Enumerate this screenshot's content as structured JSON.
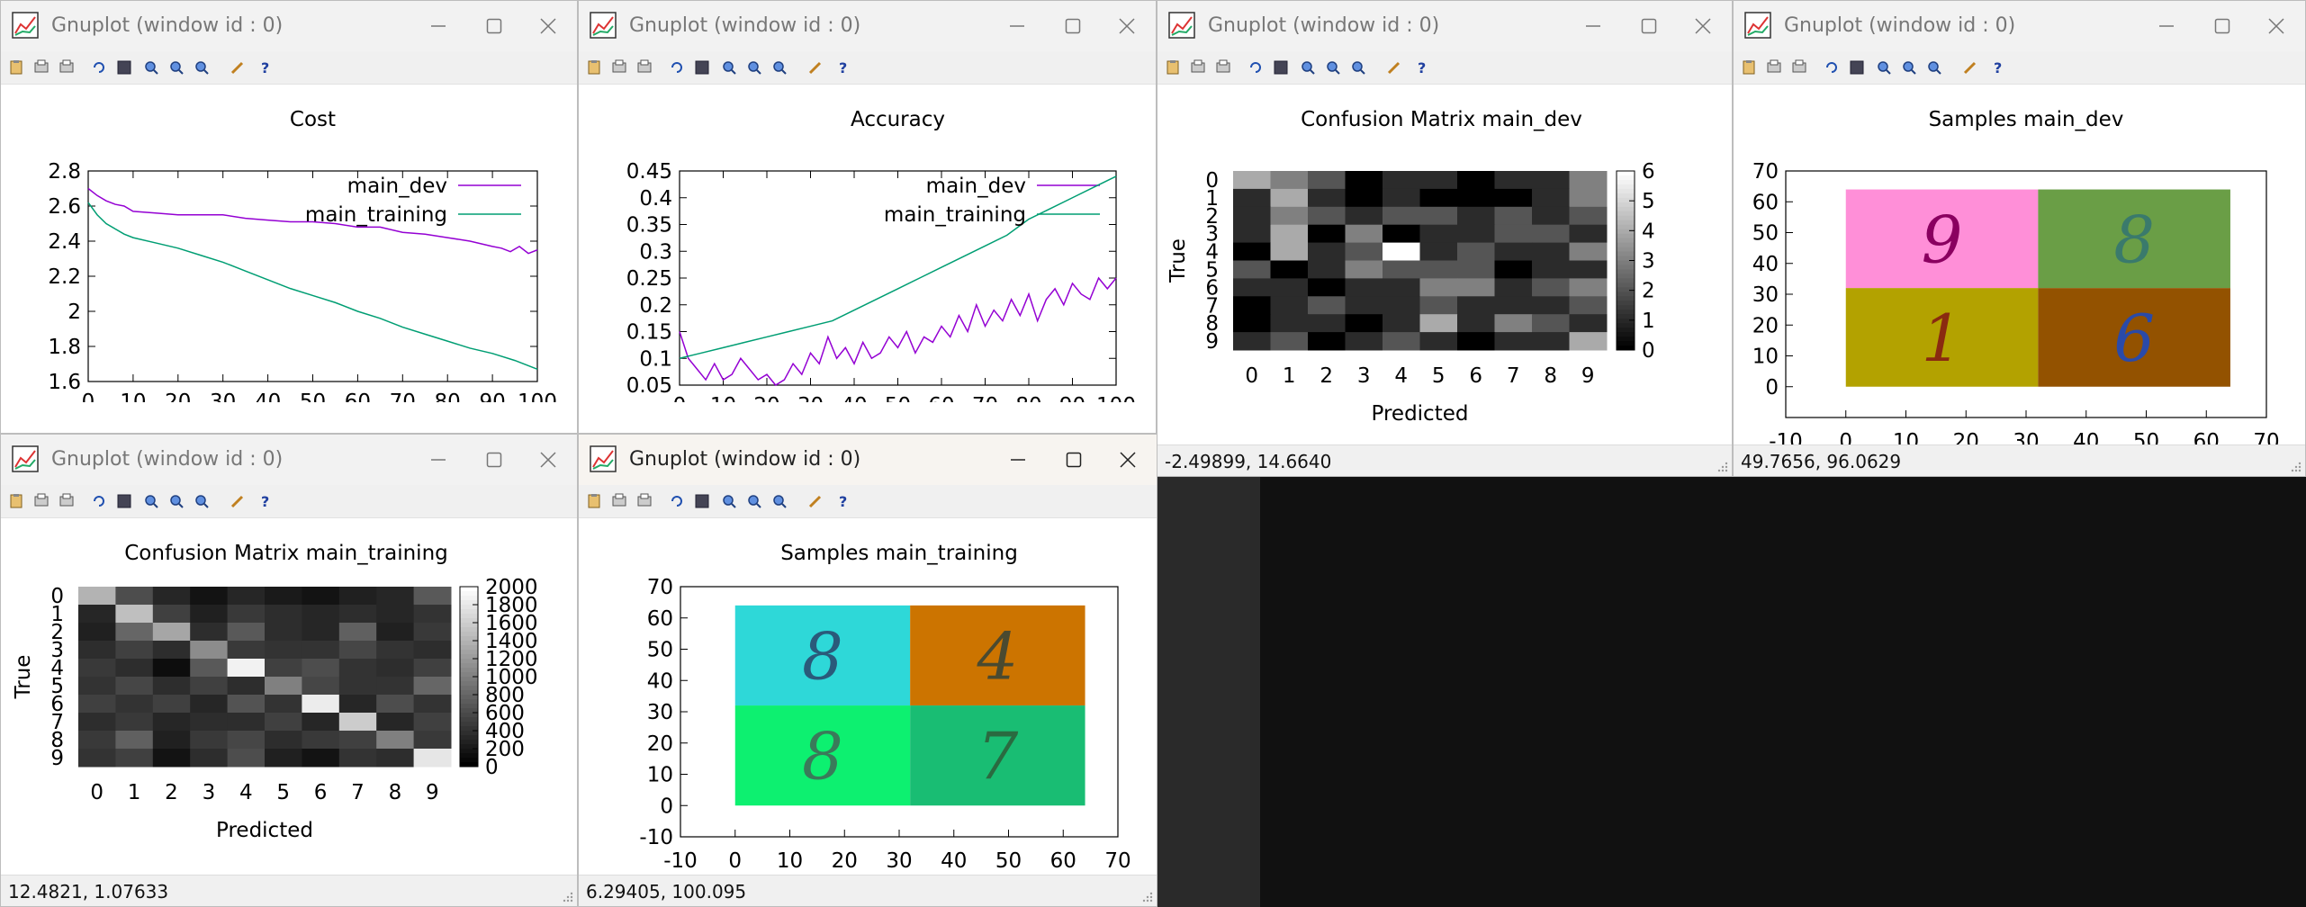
{
  "windows": [
    {
      "id": "w1",
      "title": "Gnuplot (window id : 0)",
      "active": false,
      "status": "",
      "chart_data": {
        "type": "line",
        "title": "Cost",
        "xlim": [
          0,
          100
        ],
        "ylim": [
          1.6,
          2.8
        ],
        "xticks": [
          "0",
          "10",
          "20",
          "30",
          "40",
          "50",
          "60",
          "70",
          "80",
          "90",
          "100"
        ],
        "yticks": [
          "1.6",
          "1.8",
          "2",
          "2.2",
          "2.4",
          "2.6",
          "2.8"
        ],
        "legend": "top-right",
        "series": [
          {
            "name": "main_dev",
            "color": "#9400d3",
            "x": [
              0,
              2,
              4,
              6,
              8,
              10,
              15,
              20,
              25,
              30,
              35,
              40,
              45,
              50,
              55,
              60,
              65,
              70,
              75,
              80,
              85,
              90,
              92,
              94,
              96,
              98,
              100
            ],
            "y": [
              2.7,
              2.66,
              2.63,
              2.61,
              2.6,
              2.57,
              2.56,
              2.55,
              2.55,
              2.55,
              2.53,
              2.52,
              2.51,
              2.51,
              2.5,
              2.48,
              2.48,
              2.45,
              2.44,
              2.42,
              2.4,
              2.37,
              2.36,
              2.34,
              2.37,
              2.33,
              2.35
            ]
          },
          {
            "name": "main_training",
            "color": "#009e73",
            "x": [
              0,
              2,
              4,
              6,
              8,
              10,
              15,
              20,
              25,
              30,
              35,
              40,
              45,
              50,
              55,
              60,
              65,
              70,
              75,
              80,
              85,
              90,
              95,
              100
            ],
            "y": [
              2.62,
              2.55,
              2.5,
              2.47,
              2.44,
              2.42,
              2.39,
              2.36,
              2.32,
              2.28,
              2.23,
              2.18,
              2.13,
              2.09,
              2.05,
              2.0,
              1.96,
              1.91,
              1.87,
              1.83,
              1.79,
              1.76,
              1.72,
              1.67
            ]
          }
        ]
      }
    },
    {
      "id": "w2",
      "title": "Gnuplot (window id : 0)",
      "active": false,
      "status": "",
      "chart_data": {
        "type": "line",
        "title": "Accuracy",
        "xlim": [
          0,
          100
        ],
        "ylim": [
          0.05,
          0.45
        ],
        "xticks": [
          "0",
          "10",
          "20",
          "30",
          "40",
          "50",
          "60",
          "70",
          "80",
          "90",
          "100"
        ],
        "yticks": [
          "0.05",
          "0.1",
          "0.15",
          "0.2",
          "0.25",
          "0.3",
          "0.35",
          "0.4",
          "0.45"
        ],
        "legend": "top-right",
        "series": [
          {
            "name": "main_dev",
            "color": "#9400d3",
            "x": [
              0,
              2,
              4,
              6,
              8,
              10,
              12,
              14,
              16,
              18,
              20,
              22,
              24,
              26,
              28,
              30,
              32,
              34,
              36,
              38,
              40,
              42,
              44,
              46,
              48,
              50,
              52,
              54,
              56,
              58,
              60,
              62,
              64,
              66,
              68,
              70,
              72,
              74,
              76,
              78,
              80,
              82,
              84,
              86,
              88,
              90,
              92,
              94,
              96,
              98,
              100
            ],
            "y": [
              0.15,
              0.1,
              0.08,
              0.06,
              0.09,
              0.06,
              0.07,
              0.1,
              0.08,
              0.06,
              0.07,
              0.05,
              0.06,
              0.09,
              0.07,
              0.11,
              0.09,
              0.14,
              0.1,
              0.12,
              0.09,
              0.13,
              0.1,
              0.11,
              0.14,
              0.12,
              0.15,
              0.11,
              0.14,
              0.13,
              0.16,
              0.14,
              0.18,
              0.15,
              0.2,
              0.16,
              0.19,
              0.17,
              0.21,
              0.18,
              0.22,
              0.17,
              0.21,
              0.23,
              0.2,
              0.24,
              0.22,
              0.21,
              0.25,
              0.23,
              0.25
            ]
          },
          {
            "name": "main_training",
            "color": "#009e73",
            "x": [
              0,
              5,
              10,
              15,
              20,
              25,
              30,
              35,
              40,
              45,
              50,
              55,
              60,
              65,
              70,
              75,
              80,
              85,
              90,
              95,
              100
            ],
            "y": [
              0.1,
              0.11,
              0.12,
              0.13,
              0.14,
              0.15,
              0.16,
              0.17,
              0.19,
              0.21,
              0.23,
              0.25,
              0.27,
              0.29,
              0.31,
              0.33,
              0.36,
              0.38,
              0.4,
              0.42,
              0.44
            ]
          }
        ]
      }
    },
    {
      "id": "w3",
      "title": "Gnuplot (window id : 0)",
      "active": false,
      "status": "-2.49899,  14.6640",
      "chart_data": {
        "type": "heatmap",
        "title": "Confusion Matrix main_dev",
        "xlabel": "Predicted",
        "ylabel": "True",
        "xticks": [
          "0",
          "1",
          "2",
          "3",
          "4",
          "5",
          "6",
          "7",
          "8",
          "9"
        ],
        "yticks": [
          "0",
          "1",
          "2",
          "3",
          "4",
          "5",
          "6",
          "7",
          "8",
          "9"
        ],
        "cbticks": [
          "0",
          "1",
          "2",
          "3",
          "4",
          "5",
          "6"
        ],
        "cbrange": [
          0,
          6
        ],
        "matrix": [
          [
            4,
            3,
            2,
            0,
            1,
            1,
            0,
            1,
            1,
            3
          ],
          [
            1,
            4,
            1,
            0,
            1,
            0,
            0,
            0,
            1,
            3
          ],
          [
            1,
            3,
            2,
            1,
            2,
            2,
            1,
            2,
            1,
            2
          ],
          [
            1,
            4,
            0,
            3,
            0,
            1,
            1,
            2,
            2,
            1
          ],
          [
            0,
            4,
            1,
            2,
            6,
            1,
            2,
            1,
            1,
            3
          ],
          [
            2,
            0,
            1,
            3,
            2,
            2,
            2,
            0,
            1,
            1
          ],
          [
            1,
            1,
            0,
            1,
            1,
            3,
            3,
            1,
            2,
            3
          ],
          [
            0,
            1,
            2,
            1,
            1,
            2,
            1,
            1,
            1,
            2
          ],
          [
            0,
            1,
            1,
            0,
            1,
            4,
            1,
            3,
            2,
            1
          ],
          [
            1,
            2,
            0,
            1,
            2,
            1,
            0,
            1,
            1,
            4
          ]
        ]
      }
    },
    {
      "id": "w4",
      "title": "Gnuplot (window id : 0)",
      "active": false,
      "status": "49.7656,  96.0629",
      "chart_data": {
        "type": "image",
        "title": "Samples main_dev",
        "xlim": [
          -10,
          70
        ],
        "ylim": [
          -10,
          70
        ],
        "xticks": [
          "-10",
          "0",
          "10",
          "20",
          "30",
          "40",
          "50",
          "60",
          "70"
        ],
        "yticks": [
          "0",
          "10",
          "20",
          "30",
          "40",
          "50",
          "60",
          "70"
        ],
        "tiles": [
          {
            "digit": "9",
            "bg": "#ff8fd8",
            "fg": "#8a0060",
            "x": [
              0,
              32
            ],
            "y": [
              32,
              64
            ]
          },
          {
            "digit": "8",
            "bg": "#6a9e46",
            "fg": "#3a7a6c",
            "x": [
              32,
              64
            ],
            "y": [
              32,
              64
            ]
          },
          {
            "digit": "1",
            "bg": "#b3a200",
            "fg": "#8a2a10",
            "x": [
              0,
              32
            ],
            "y": [
              0,
              32
            ]
          },
          {
            "digit": "6",
            "bg": "#935200",
            "fg": "#2a4aa8",
            "x": [
              32,
              64
            ],
            "y": [
              0,
              32
            ]
          }
        ]
      }
    },
    {
      "id": "w5",
      "title": "Gnuplot (window id : 0)",
      "active": false,
      "status": "12.4821,  1.07633",
      "chart_data": {
        "type": "heatmap",
        "title": "Confusion Matrix main_training",
        "xlabel": "Predicted",
        "ylabel": "True",
        "xticks": [
          "0",
          "1",
          "2",
          "3",
          "4",
          "5",
          "6",
          "7",
          "8",
          "9"
        ],
        "yticks": [
          "0",
          "1",
          "2",
          "3",
          "4",
          "5",
          "6",
          "7",
          "8",
          "9"
        ],
        "cbticks": [
          "0",
          "200",
          "400",
          "600",
          "800",
          "1000",
          "1200",
          "1400",
          "1600",
          "1800",
          "2000"
        ],
        "cbrange": [
          0,
          2000
        ],
        "matrix": [
          [
            1400,
            600,
            300,
            150,
            300,
            200,
            150,
            250,
            300,
            700
          ],
          [
            300,
            1500,
            500,
            250,
            450,
            350,
            300,
            350,
            300,
            400
          ],
          [
            250,
            800,
            1300,
            350,
            700,
            350,
            300,
            750,
            250,
            450
          ],
          [
            350,
            500,
            350,
            1100,
            450,
            400,
            400,
            550,
            400,
            350
          ],
          [
            450,
            350,
            100,
            700,
            1900,
            500,
            600,
            400,
            350,
            500
          ],
          [
            400,
            550,
            350,
            500,
            350,
            1000,
            550,
            400,
            400,
            800
          ],
          [
            500,
            400,
            500,
            300,
            650,
            400,
            1850,
            300,
            600,
            400
          ],
          [
            350,
            450,
            300,
            350,
            350,
            500,
            300,
            1600,
            300,
            500
          ],
          [
            450,
            750,
            250,
            450,
            550,
            350,
            450,
            500,
            1000,
            450
          ],
          [
            400,
            500,
            150,
            350,
            600,
            250,
            150,
            400,
            350,
            1800
          ]
        ]
      }
    },
    {
      "id": "w6",
      "title": "Gnuplot (window id : 0)",
      "active": true,
      "status": "6.29405,  100.095",
      "chart_data": {
        "type": "image",
        "title": "Samples main_training",
        "xlim": [
          -10,
          70
        ],
        "ylim": [
          -10,
          70
        ],
        "xticks": [
          "-10",
          "0",
          "10",
          "20",
          "30",
          "40",
          "50",
          "60",
          "70"
        ],
        "yticks": [
          "-10",
          "0",
          "10",
          "20",
          "30",
          "40",
          "50",
          "60",
          "70"
        ],
        "tiles": [
          {
            "digit": "8",
            "bg": "#2ed8d8",
            "fg": "#2a5a7a",
            "x": [
              0,
              32
            ],
            "y": [
              32,
              64
            ]
          },
          {
            "digit": "4",
            "bg": "#cc7400",
            "fg": "#4a4a30",
            "x": [
              32,
              64
            ],
            "y": [
              32,
              64
            ]
          },
          {
            "digit": "8",
            "bg": "#0df070",
            "fg": "#3a7a5a",
            "x": [
              0,
              32
            ],
            "y": [
              0,
              32
            ]
          },
          {
            "digit": "7",
            "bg": "#19bd73",
            "fg": "#2a6a40",
            "x": [
              32,
              64
            ],
            "y": [
              0,
              32
            ]
          }
        ]
      }
    }
  ]
}
